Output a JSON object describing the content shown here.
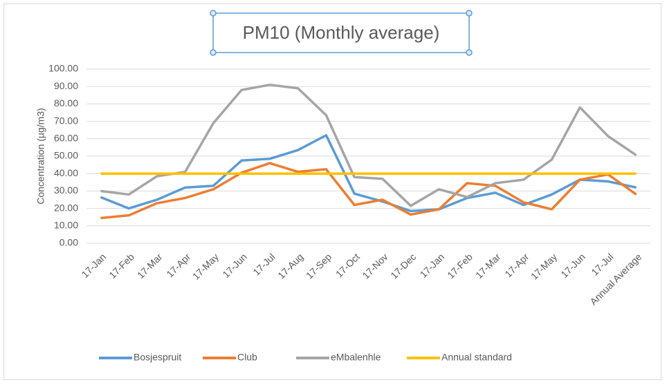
{
  "chart_data": {
    "type": "line",
    "title": "PM10 (Monthly average)",
    "y_label": "Concentration (µg/m3)",
    "categories": [
      "17-Jan",
      "17-Feb",
      "17-Mar",
      "17-Apr",
      "17-May",
      "17-Jun",
      "17-Jul",
      "17-Aug",
      "17-Sep",
      "17-Oct",
      "17-Nov",
      "17-Dec",
      "17-Jan",
      "17-Feb",
      "17-Mar",
      "17-Apr",
      "17-May",
      "17-Jun",
      "17-Jul",
      "Annual Average"
    ],
    "series": [
      {
        "name": "Bosjespruit",
        "color": "#5b9bd5",
        "values": [
          26.5,
          20,
          25,
          32,
          33,
          47.5,
          48.5,
          53.5,
          62,
          28.5,
          24,
          18.5,
          19.5,
          26,
          29,
          22,
          28,
          36.5,
          35.5,
          32
        ]
      },
      {
        "name": "Club",
        "color": "#ed7d31",
        "values": [
          14.5,
          16,
          23,
          26,
          31,
          40.5,
          46,
          41,
          42.5,
          22,
          25,
          16.5,
          19.5,
          34.5,
          33,
          23.5,
          19.5,
          36.5,
          39.5,
          28
        ]
      },
      {
        "name": "eMbalenhle",
        "color": "#a5a5a5",
        "values": [
          30,
          28,
          38.5,
          41,
          69,
          88,
          91,
          89,
          73.5,
          38,
          37,
          21.5,
          31,
          26.5,
          34.5,
          36.5,
          48,
          78,
          61.5,
          50.5
        ]
      },
      {
        "name": "Annual standard",
        "color": "#ffc000",
        "values": [
          40,
          40,
          40,
          40,
          40,
          40,
          40,
          40,
          40,
          40,
          40,
          40,
          40,
          40,
          40,
          40,
          40,
          40,
          40,
          40
        ]
      }
    ],
    "ylim": [
      0,
      100
    ],
    "yticks": [
      {
        "value": 0,
        "label": "0.00"
      },
      {
        "value": 10,
        "label": "10.00"
      },
      {
        "value": 20,
        "label": "20.00"
      },
      {
        "value": 30,
        "label": "30.00"
      },
      {
        "value": 40,
        "label": "40.00"
      },
      {
        "value": 50,
        "label": "50.00"
      },
      {
        "value": 60,
        "label": "60.00"
      },
      {
        "value": 70,
        "label": "70.00"
      },
      {
        "value": 80,
        "label": "80.00"
      },
      {
        "value": 90,
        "label": "90.00"
      },
      {
        "value": 100,
        "label": "100.00"
      }
    ],
    "grid": true
  }
}
